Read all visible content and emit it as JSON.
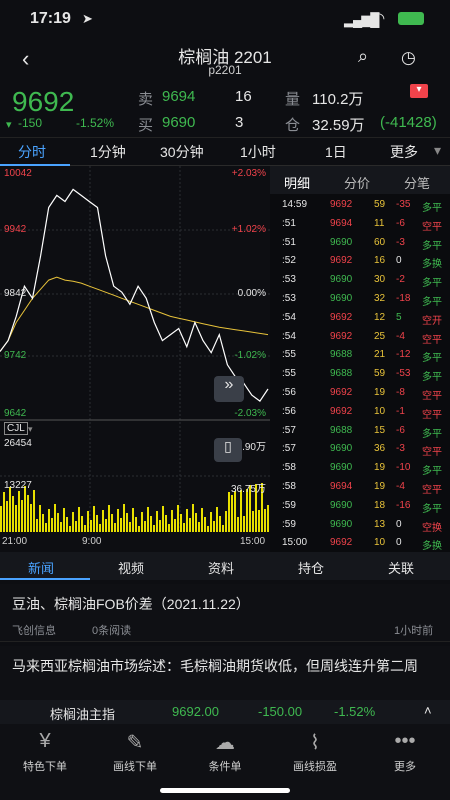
{
  "status": {
    "time": "17:19"
  },
  "header": {
    "title": "棕榈油 2201",
    "subtitle": "p2201"
  },
  "quote": {
    "price": "9692",
    "change": "-150",
    "change_pct": "-1.52%",
    "sell_label": "卖",
    "sell_price": "9694",
    "sell_vol": "16",
    "buy_label": "买",
    "buy_price": "9690",
    "buy_vol": "3",
    "volume_label": "量",
    "volume": "110.2万",
    "oi_label": "仓",
    "oi": "32.59万",
    "oi_change": "(-41428)"
  },
  "chart_tabs": [
    "分时",
    "1分钟",
    "30分钟",
    "1小时",
    "1日",
    "更多"
  ],
  "side_tabs": [
    "明细",
    "分价",
    "分笔"
  ],
  "chart_data": {
    "type": "line",
    "price_levels": [
      "10042",
      "9942",
      "9842",
      "9742",
      "9642"
    ],
    "pct_levels": [
      "+2.03%",
      "+1.02%",
      "0.00%",
      "-1.02%",
      "-2.03%"
    ],
    "vol_label": "CJL",
    "vol_levels": [
      "26454",
      "13227"
    ],
    "vol_right": [
      "40.90万",
      "36.75万"
    ],
    "x_labels": [
      "21:00",
      "9:00",
      "15:00"
    ],
    "ylim": [
      9642,
      10042
    ],
    "price": [
      9742,
      9760,
      9800,
      9850,
      9830,
      9900,
      9980,
      10000,
      9990,
      10010,
      10000,
      9990,
      9980,
      9900,
      9850,
      9840,
      9820,
      9850,
      9830,
      9790,
      9760,
      9770,
      9780,
      9750,
      9790,
      9760,
      9740,
      9770,
      9720,
      9700,
      9690,
      9670,
      9660,
      9680
    ],
    "avg": [
      9742,
      9760,
      9790,
      9810,
      9830,
      9845,
      9860,
      9865,
      9860,
      9858,
      9855,
      9850,
      9845,
      9840,
      9835,
      9830,
      9825,
      9820,
      9815,
      9810,
      9805,
      9800,
      9797,
      9794,
      9791,
      9788,
      9785,
      9782,
      9780,
      9778,
      9776,
      9774,
      9772,
      9770
    ]
  },
  "ticks": [
    {
      "t": "14:59",
      "p": "9692",
      "v": "59",
      "c": "-35",
      "d": "多平"
    },
    {
      "t": ":51",
      "p": "9694",
      "v": "11",
      "c": "-6",
      "d": "空平"
    },
    {
      "t": ":51",
      "p": "9690",
      "v": "60",
      "c": "-3",
      "d": "多平"
    },
    {
      "t": ":52",
      "p": "9692",
      "v": "16",
      "c": "0",
      "d": "多换"
    },
    {
      "t": ":53",
      "p": "9690",
      "v": "30",
      "c": "-2",
      "d": "多平"
    },
    {
      "t": ":53",
      "p": "9690",
      "v": "32",
      "c": "-18",
      "d": "多平"
    },
    {
      "t": ":54",
      "p": "9692",
      "v": "12",
      "c": "5",
      "d": "空开"
    },
    {
      "t": ":54",
      "p": "9692",
      "v": "25",
      "c": "-4",
      "d": "空平"
    },
    {
      "t": ":55",
      "p": "9688",
      "v": "21",
      "c": "-12",
      "d": "多平"
    },
    {
      "t": ":55",
      "p": "9688",
      "v": "59",
      "c": "-53",
      "d": "多平"
    },
    {
      "t": ":56",
      "p": "9692",
      "v": "19",
      "c": "-8",
      "d": "空平"
    },
    {
      "t": ":56",
      "p": "9692",
      "v": "10",
      "c": "-1",
      "d": "空平"
    },
    {
      "t": ":57",
      "p": "9688",
      "v": "15",
      "c": "-6",
      "d": "多平"
    },
    {
      "t": ":57",
      "p": "9690",
      "v": "36",
      "c": "-3",
      "d": "空平"
    },
    {
      "t": ":58",
      "p": "9690",
      "v": "19",
      "c": "-10",
      "d": "多平"
    },
    {
      "t": ":58",
      "p": "9694",
      "v": "19",
      "c": "-4",
      "d": "空平"
    },
    {
      "t": ":59",
      "p": "9690",
      "v": "18",
      "c": "-16",
      "d": "多平"
    },
    {
      "t": ":59",
      "p": "9690",
      "v": "13",
      "c": "0",
      "d": "空换"
    },
    {
      "t": "15:00",
      "p": "9692",
      "v": "10",
      "c": "0",
      "d": "多换"
    }
  ],
  "news_tabs": [
    "新闻",
    "视频",
    "资料",
    "持仓",
    "关联"
  ],
  "news": [
    {
      "title": "豆油、棕榈油FOB价差（2021.11.22）",
      "source": "飞创信息",
      "reads": "0条阅读",
      "ago": "1小时前"
    },
    {
      "title": "马来西亚棕榈油市场综述：毛棕榈油期货收低，但周线连升第二周"
    }
  ],
  "ticker": {
    "name": "棕榈油主指",
    "price": "9692.00",
    "change": "-150.00",
    "pct": "-1.52%"
  },
  "toolbar": [
    "特色下单",
    "画线下单",
    "条件单",
    "画线损盈",
    "更多"
  ],
  "colors": {
    "up": "#f0434b",
    "down": "#3fb950",
    "avg": "#e8c33a"
  }
}
